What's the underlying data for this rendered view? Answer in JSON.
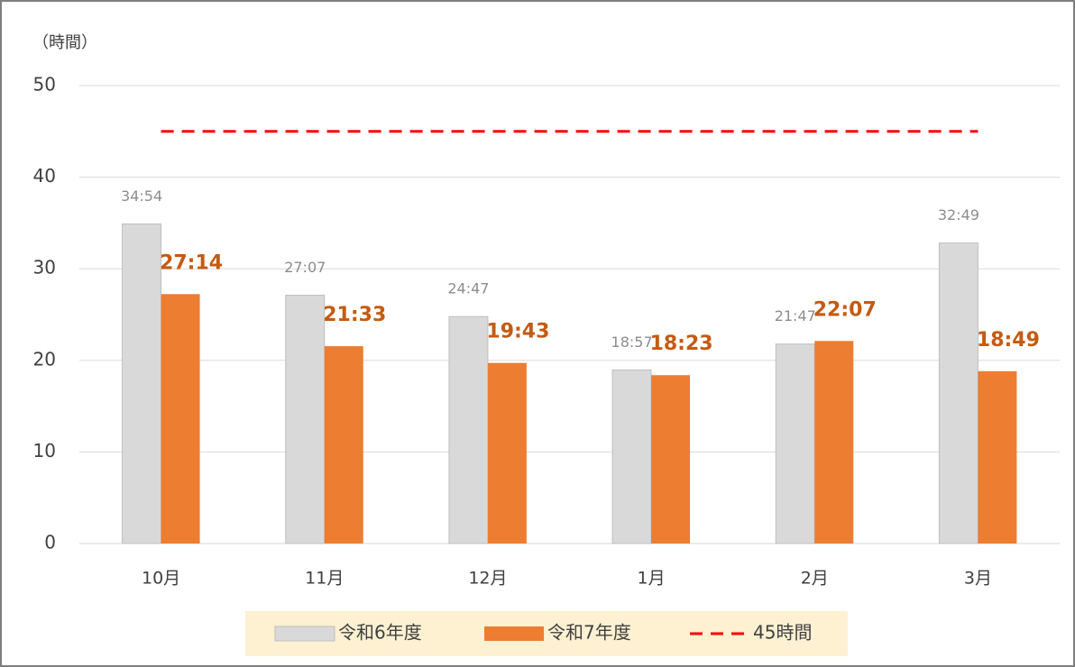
{
  "chart_data": {
    "type": "bar",
    "y_label": "（時間）",
    "categories": [
      "10月",
      "11月",
      "12月",
      "1月",
      "2月",
      "3月"
    ],
    "ylim": [
      0,
      50
    ],
    "yticks": [
      0,
      10,
      20,
      30,
      40,
      50
    ],
    "grid": true,
    "legend": "bottom",
    "series": [
      {
        "name": "令和6年度",
        "color": "#d9d9d9",
        "values": [
          34.9,
          27.1167,
          24.7833,
          18.95,
          21.7833,
          32.8167
        ],
        "value_labels": [
          "34:54",
          "27:07",
          "24:47",
          "18:57",
          "21:47",
          "32:49"
        ]
      },
      {
        "name": "令和7年度",
        "color": "#ed7d31",
        "values": [
          27.2333,
          21.55,
          19.7167,
          18.3833,
          22.1167,
          18.8167
        ],
        "value_labels": [
          "27:14",
          "21:33",
          "19:43",
          "18:23",
          "22:07",
          "18:49"
        ]
      },
      {
        "name": "45時間",
        "type": "line",
        "color": "#ff0000",
        "values": [
          45,
          45,
          45,
          45,
          45,
          45
        ]
      }
    ]
  }
}
